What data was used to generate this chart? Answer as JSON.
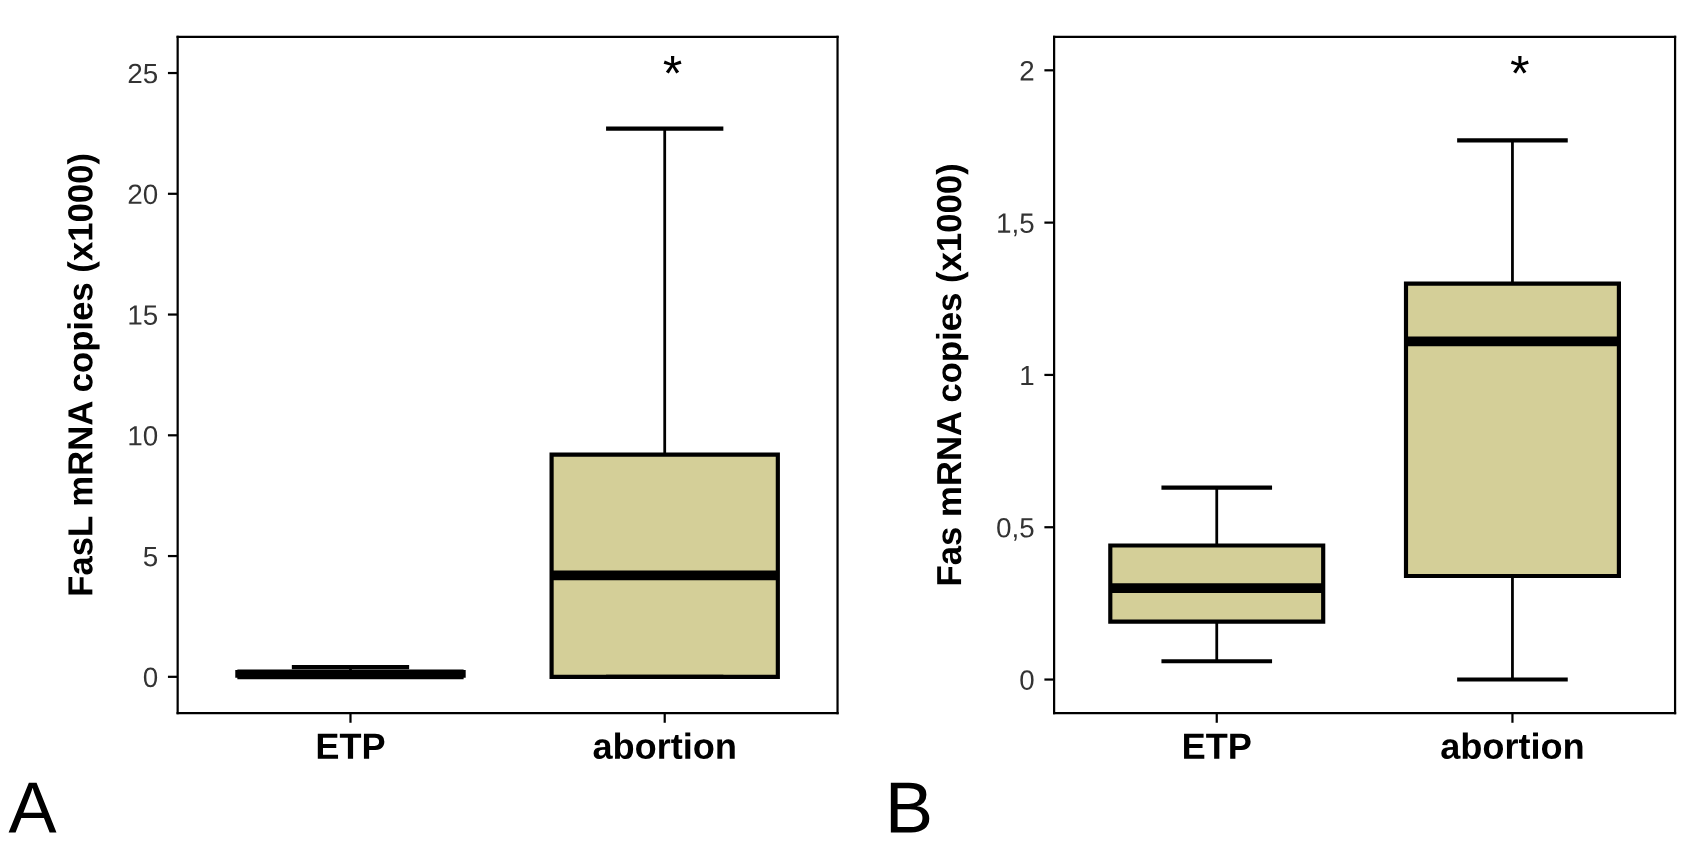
{
  "chart_data": [
    {
      "type": "box",
      "ylabel": "FasL mRNA copies (x1000)",
      "categories": [
        "ETP",
        "abortion"
      ],
      "color": "#d4cf98",
      "boxes": [
        {
          "low": 0,
          "q1": 0.05,
          "median": 0.1,
          "q3": 0.2,
          "high": 0.4
        },
        {
          "low": 0,
          "q1": 0,
          "median": 4.2,
          "q3": 9.2,
          "high": 22.7
        }
      ],
      "ylim": [
        -1.5,
        26.5
      ],
      "yticks": [
        0,
        5,
        10,
        15,
        20,
        25
      ],
      "grid": false,
      "legend": false,
      "annotations": [
        "*",
        "A"
      ]
    },
    {
      "type": "box",
      "ylabel": "Fas mRNA copies (x1000)",
      "categories": [
        "ETP",
        "abortion"
      ],
      "color": "#d4cf98",
      "boxes": [
        {
          "low": 0.06,
          "q1": 0.19,
          "median": 0.3,
          "q3": 0.44,
          "high": 0.63
        },
        {
          "low": 0,
          "q1": 0.34,
          "median": 1.11,
          "q3": 1.3,
          "high": 1.77
        }
      ],
      "ylim": [
        -0.11,
        2.11
      ],
      "yticks": [
        0,
        {
          "value": 0.5,
          "label": "0,5"
        },
        1,
        {
          "value": 1.5,
          "label": "1,5"
        },
        2
      ],
      "grid": false,
      "legend": false,
      "annotations": [
        "*",
        "B"
      ]
    }
  ]
}
